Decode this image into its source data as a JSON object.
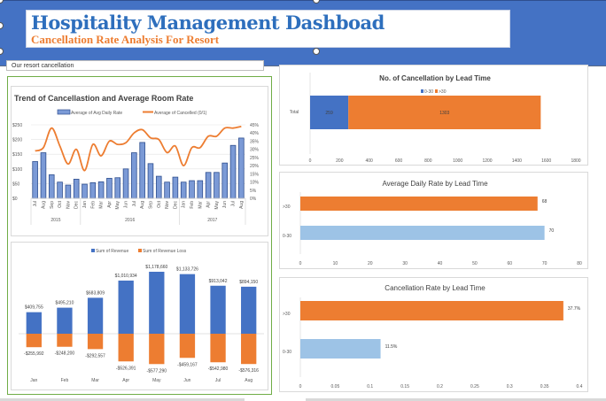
{
  "header": {
    "title": "Hospitality Management Dashboad",
    "subtitle": "Cancellation Rate Analysis For Resort",
    "bg_color": "#4472c4"
  },
  "resort_label": "Our resort cancellation",
  "colors": {
    "blue": "#4472c4",
    "orange": "#ed7d31",
    "light_blue": "#9dc3e6",
    "bar_blue": "#7b9ad6",
    "bar_border": "#2f4f8f"
  },
  "chart_data": [
    {
      "id": "trend",
      "type": "bar",
      "title": "Trend  of Cancellastion and Average Room Rate",
      "legend": [
        "Average of Avg Daily Rate",
        "Average of Cancelled (0/1)"
      ],
      "legend_position": "top",
      "categories": [
        "Jul",
        "Aug",
        "Sep",
        "Oct",
        "Nov",
        "Dec",
        "Jan",
        "Feb",
        "Mar",
        "Apr",
        "May",
        "Jun",
        "Jul",
        "Aug",
        "Sep",
        "Oct",
        "Nov",
        "Dec",
        "Jan",
        "Feb",
        "Mar",
        "Apr",
        "May",
        "Jun",
        "Jul",
        "Aug"
      ],
      "year_groups": [
        {
          "label": "2015",
          "count": 6
        },
        {
          "label": "2016",
          "count": 12
        },
        {
          "label": "2017",
          "count": 8
        }
      ],
      "series": [
        {
          "name": "Average of Avg Daily Rate",
          "type": "bar",
          "axis": "left",
          "values": [
            125,
            155,
            80,
            55,
            45,
            65,
            48,
            53,
            56,
            68,
            70,
            100,
            155,
            190,
            118,
            75,
            55,
            72,
            55,
            60,
            60,
            88,
            88,
            120,
            180,
            205
          ]
        },
        {
          "name": "Average of Cancelled (0/1)",
          "type": "line",
          "axis": "right",
          "values": [
            0.29,
            0.31,
            0.43,
            0.32,
            0.21,
            0.3,
            0.17,
            0.33,
            0.26,
            0.35,
            0.33,
            0.34,
            0.4,
            0.42,
            0.37,
            0.36,
            0.28,
            0.32,
            0.2,
            0.31,
            0.31,
            0.38,
            0.38,
            0.43,
            0.43,
            0.44
          ]
        }
      ],
      "left_ticks": [
        "$250",
        "$200",
        "$150",
        "$100",
        "$50",
        "$0"
      ],
      "right_ticks": [
        "45%",
        "40%",
        "35%",
        "30%",
        "25%",
        "20%",
        "15%",
        "10%",
        "5%",
        "0%"
      ],
      "ylim_left": [
        0,
        250
      ],
      "ylim_right": [
        0,
        0.45
      ],
      "grid": true
    },
    {
      "id": "revenue",
      "type": "bar",
      "title": "",
      "legend": [
        "Sum of Revenue",
        "Sum of Revenue Loss"
      ],
      "legend_position": "top",
      "categories": [
        "Jan",
        "Feb",
        "Mar",
        "Apr",
        "May",
        "Jun",
        "Jul",
        "Aug"
      ],
      "series": [
        {
          "name": "Sum of Revenue",
          "values": [
            409755,
            495210,
            683809,
            1010934,
            1178660,
            1133726,
            913042,
            894150
          ],
          "labels": [
            "$409,755",
            "$495,210",
            "$683,809",
            "$1,010,934",
            "$1,178,660",
            "$1,133,726",
            "$913,042",
            "$894,150"
          ]
        },
        {
          "name": "Sum of Revenue Loss",
          "values": [
            -255992,
            -248200,
            -292557,
            -526391,
            -577290,
            -459167,
            -542980,
            -576316
          ],
          "labels": [
            "-$255,992",
            "-$248,200",
            "-$292,557",
            "-$526,391",
            "-$577,290",
            "-$459,167",
            "-$542,980",
            "-$576,316"
          ]
        }
      ]
    },
    {
      "id": "cancel-count",
      "type": "bar",
      "orientation": "horizontal-stacked",
      "title": "No. of Cancellation by Lead Time",
      "legend": [
        "0-30",
        ">30"
      ],
      "legend_position": "top",
      "categories": [
        "Total"
      ],
      "series": [
        {
          "name": "0-30",
          "values": [
            259
          ],
          "labels": [
            "259"
          ]
        },
        {
          "name": ">30",
          "values": [
            1303
          ],
          "labels": [
            "1303"
          ]
        }
      ],
      "xticks": [
        "0",
        "200",
        "400",
        "600",
        "800",
        "1000",
        "1200",
        "1400",
        "1600",
        "1800"
      ],
      "xlim": [
        0,
        1800
      ]
    },
    {
      "id": "adr",
      "type": "bar",
      "orientation": "horizontal",
      "title": "Average Daily Rate by Lead Time",
      "categories": [
        ">30",
        "0-30"
      ],
      "values": [
        68,
        70
      ],
      "labels": [
        "68",
        "70"
      ],
      "xticks": [
        "0",
        "10",
        "20",
        "30",
        "40",
        "50",
        "60",
        "70",
        "80"
      ],
      "xlim": [
        0,
        80
      ]
    },
    {
      "id": "cancel-rate",
      "type": "bar",
      "orientation": "horizontal",
      "title": "Cancellation Rate by Lead Time",
      "categories": [
        ">30",
        "0-30"
      ],
      "values": [
        0.377,
        0.115
      ],
      "labels": [
        "37.7%",
        "11.5%"
      ],
      "xticks": [
        "0",
        "0.05",
        "0.1",
        "0.15",
        "0.2",
        "0.25",
        "0.3",
        "0.35",
        "0.4"
      ],
      "xlim": [
        0,
        0.4
      ]
    }
  ]
}
